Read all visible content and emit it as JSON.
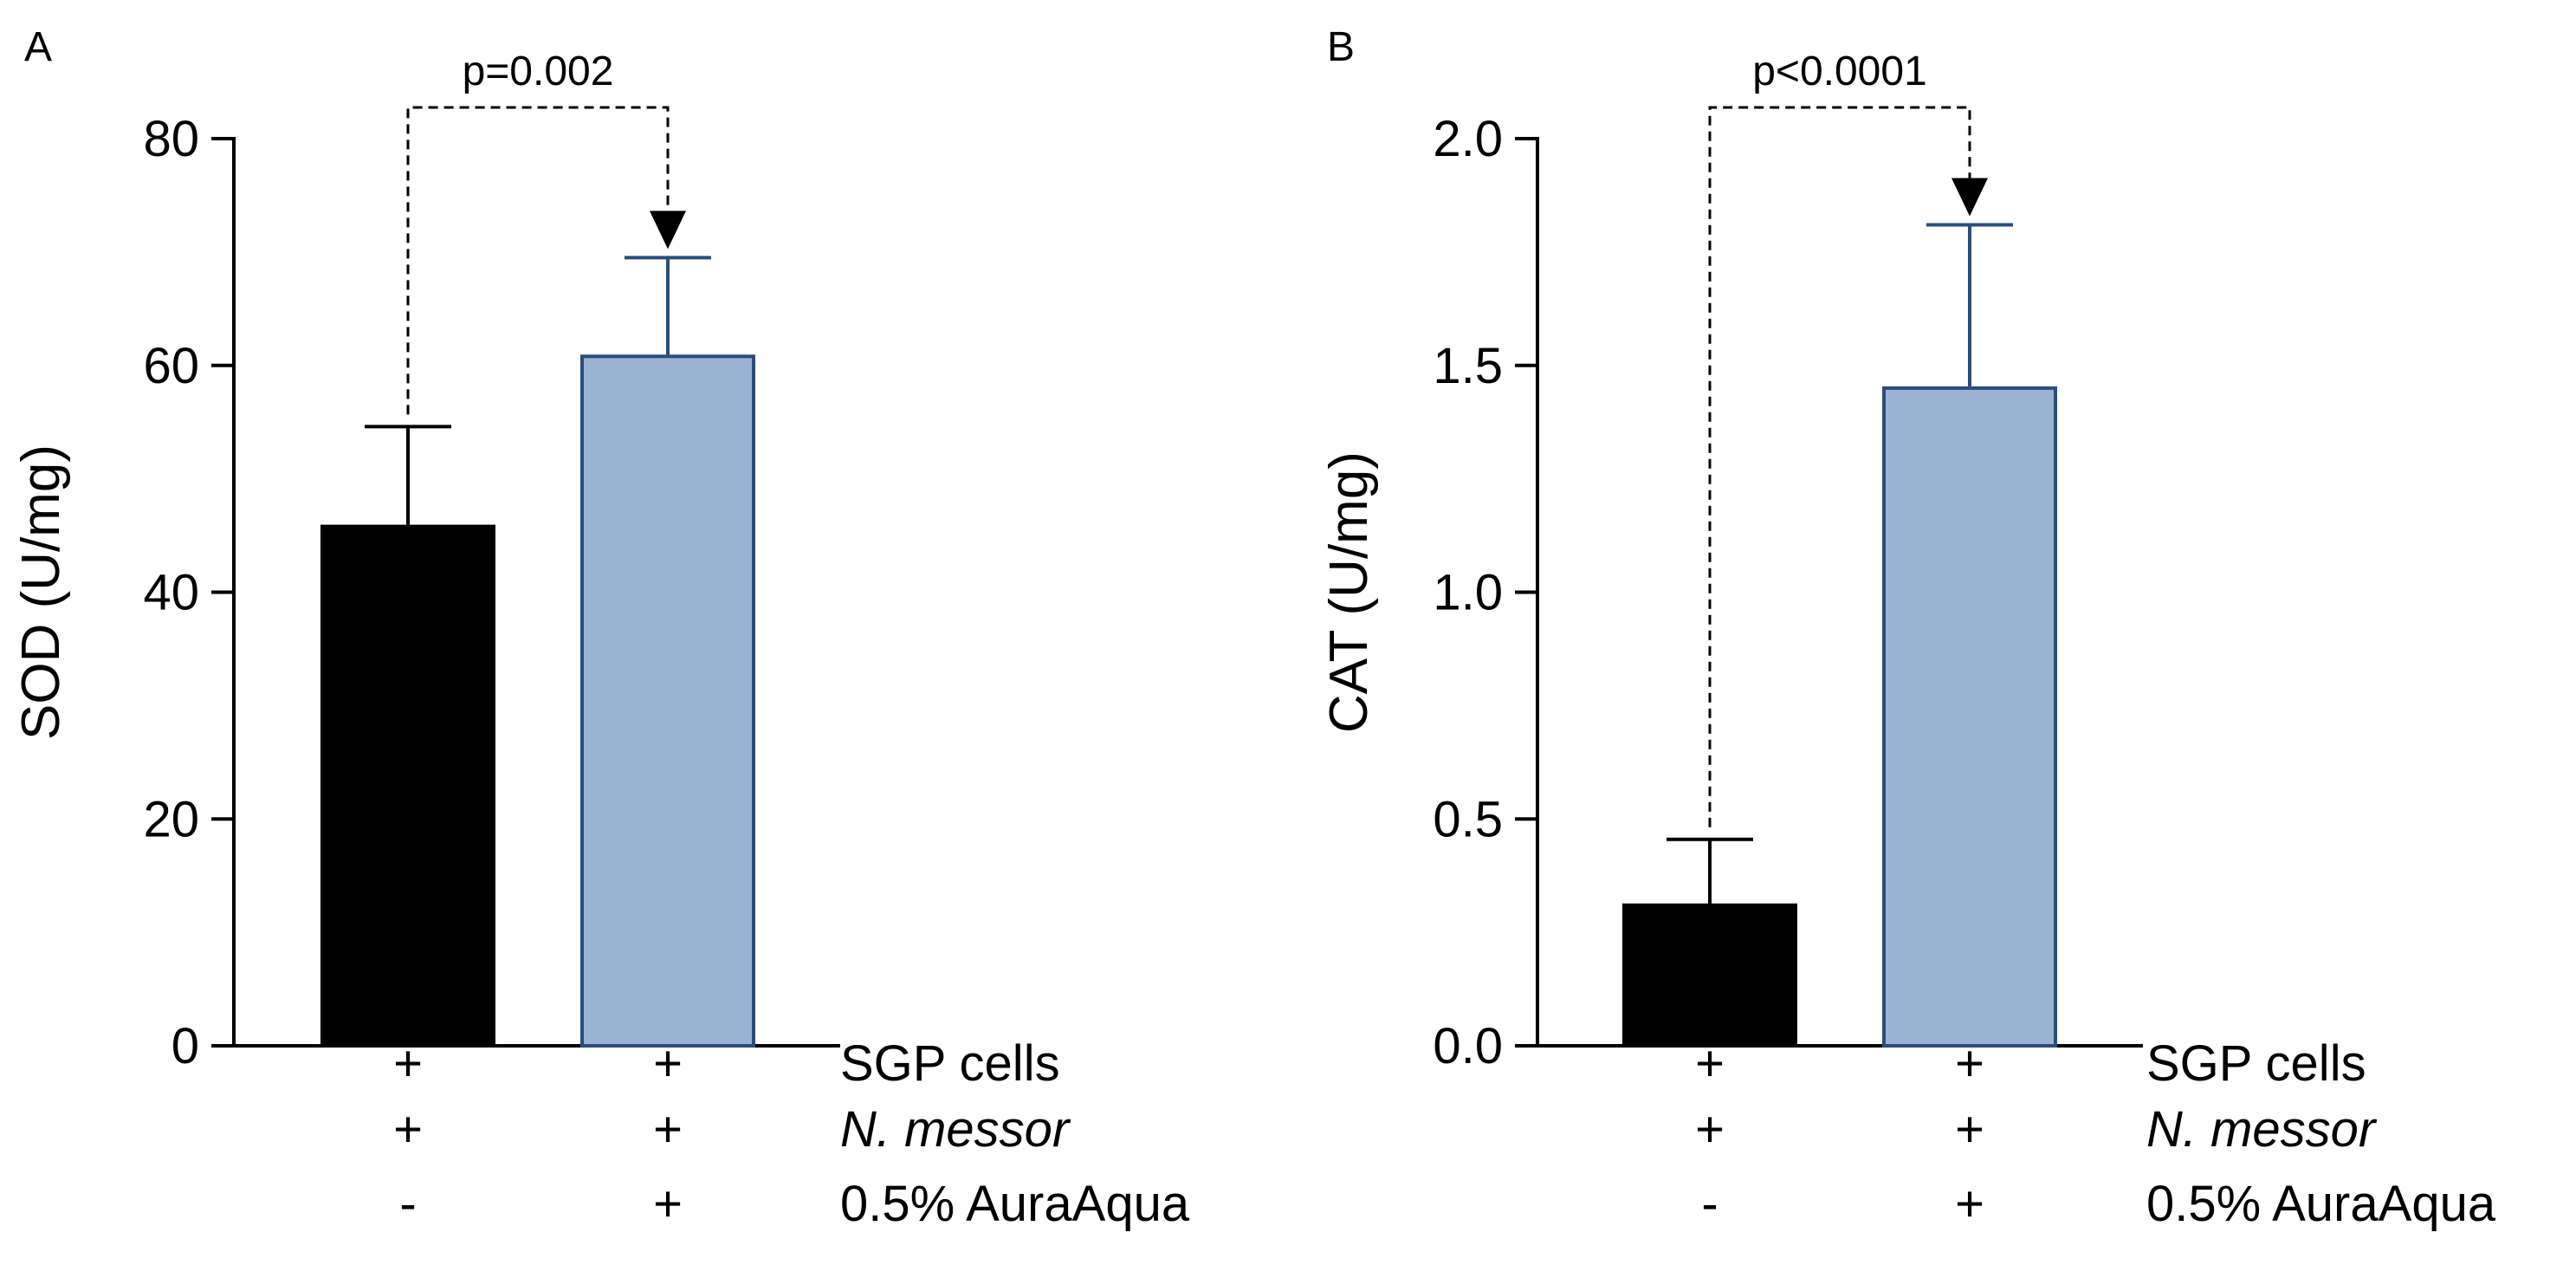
{
  "chart_data": [
    {
      "type": "bar",
      "panel": "A",
      "ylabel": "SOD (U/mg)",
      "ylim": [
        0,
        80
      ],
      "yticks": [
        0,
        20,
        40,
        60,
        80
      ],
      "ytick_labels": [
        "0",
        "20",
        "40",
        "60",
        "80"
      ],
      "bars": [
        {
          "value": 45.8,
          "error": 8.8,
          "color": "#000000",
          "edge": "#000000"
        },
        {
          "value": 60.8,
          "error": 8.7,
          "color": "#9bb3d3",
          "edge": "#2a4e7a"
        }
      ],
      "comparison": {
        "from": 0,
        "to": 1,
        "label": "p=0.002"
      },
      "conditions": [
        {
          "label": "SGP cells",
          "italic": false,
          "signs": [
            "+",
            "+"
          ]
        },
        {
          "label": "N. messor",
          "italic": true,
          "signs": [
            "+",
            "+"
          ]
        },
        {
          "label": "0.5% AuraAqua",
          "italic": false,
          "signs": [
            "-",
            "+"
          ]
        }
      ]
    },
    {
      "type": "bar",
      "panel": "B",
      "ylabel": "CAT (U/mg)",
      "ylim": [
        0,
        2.0
      ],
      "yticks": [
        0,
        0.5,
        1.0,
        1.5,
        2.0
      ],
      "ytick_labels": [
        "0.0",
        "0.5",
        "1.0",
        "1.5",
        "2.0"
      ],
      "bars": [
        {
          "value": 0.31,
          "error": 0.145,
          "color": "#000000",
          "edge": "#000000"
        },
        {
          "value": 1.45,
          "error": 0.36,
          "color": "#9bb3d3",
          "edge": "#2a4e7a"
        }
      ],
      "comparison": {
        "from": 0,
        "to": 1,
        "label": "p<0.0001"
      },
      "conditions": [
        {
          "label": "SGP cells",
          "italic": false,
          "signs": [
            "+",
            "+"
          ]
        },
        {
          "label": "N. messor",
          "italic": true,
          "signs": [
            "+",
            "+"
          ]
        },
        {
          "label": "0.5% AuraAqua",
          "italic": false,
          "signs": [
            "-",
            "+"
          ]
        }
      ]
    }
  ]
}
